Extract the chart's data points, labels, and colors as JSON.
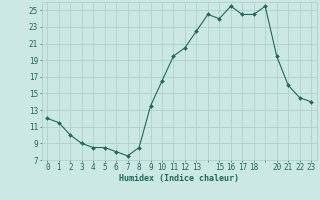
{
  "x": [
    0,
    1,
    2,
    3,
    4,
    5,
    6,
    7,
    8,
    9,
    10,
    11,
    12,
    13,
    14,
    15,
    16,
    17,
    18,
    19,
    20,
    21,
    22,
    23
  ],
  "y": [
    12.0,
    11.5,
    10.0,
    9.0,
    8.5,
    8.5,
    8.0,
    7.5,
    8.5,
    13.5,
    16.5,
    19.5,
    20.5,
    22.5,
    24.5,
    24.0,
    25.5,
    24.5,
    24.5,
    25.5,
    19.5,
    16.0,
    14.5,
    14.0
  ],
  "xlabel": "Humidex (Indice chaleur)",
  "ylim": [
    7,
    26
  ],
  "xlim": [
    -0.5,
    23.5
  ],
  "yticks": [
    7,
    9,
    11,
    13,
    15,
    17,
    19,
    21,
    23,
    25
  ],
  "xtick_labels": [
    "0",
    "1",
    "2",
    "3",
    "4",
    "5",
    "6",
    "7",
    "8",
    "9",
    "10",
    "11",
    "12",
    "13",
    "",
    "15",
    "16",
    "17",
    "18",
    "",
    "20",
    "21",
    "22",
    "23"
  ],
  "line_color": "#1a6b5a",
  "marker_color": "#1a6b5a",
  "bg_color": "#cce8e4",
  "grid_color": "#aaccca",
  "title_color": "#1a6b5a",
  "tick_color": "#1a6b5a",
  "xlabel_fontsize": 6.0,
  "axis_tick_fontsize": 5.5
}
